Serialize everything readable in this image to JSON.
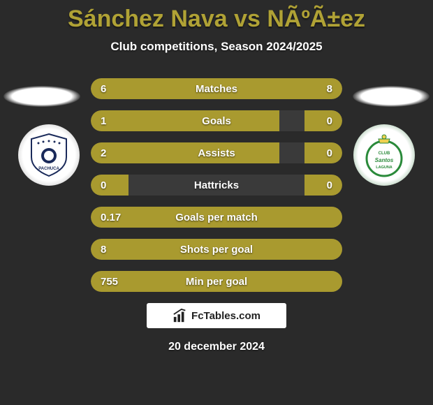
{
  "title": "Sánchez Nava vs NÃºÃ±ez",
  "subtitle": "Club competitions, Season 2024/2025",
  "date": "20 december 2024",
  "footer_logo_text": "FcTables.com",
  "colors": {
    "accent": "#b0a235",
    "row_bg": "#3a3a3a",
    "fill_left": "#a99a2f",
    "fill_right": "#a99a2f",
    "text": "#ffffff",
    "background": "#2a2a2a"
  },
  "left_badge": {
    "name": "Pachuca",
    "colors": {
      "primary": "#1a2a5a",
      "secondary": "#ffffff"
    }
  },
  "right_badge": {
    "name": "Santos Laguna",
    "colors": {
      "primary": "#2a8a3a",
      "secondary": "#f0d050"
    }
  },
  "stats": [
    {
      "label": "Matches",
      "left_val": "6",
      "right_val": "8",
      "left_pct": 43,
      "right_pct": 57
    },
    {
      "label": "Goals",
      "left_val": "1",
      "right_val": "0",
      "left_pct": 75,
      "right_pct": 15
    },
    {
      "label": "Assists",
      "left_val": "2",
      "right_val": "0",
      "left_pct": 75,
      "right_pct": 15
    },
    {
      "label": "Hattricks",
      "left_val": "0",
      "right_val": "0",
      "left_pct": 15,
      "right_pct": 15
    },
    {
      "label": "Goals per match",
      "left_val": "0.17",
      "right_val": "",
      "left_pct": 100,
      "right_pct": 0
    },
    {
      "label": "Shots per goal",
      "left_val": "8",
      "right_val": "",
      "left_pct": 100,
      "right_pct": 0
    },
    {
      "label": "Min per goal",
      "left_val": "755",
      "right_val": "",
      "left_pct": 100,
      "right_pct": 0
    }
  ]
}
